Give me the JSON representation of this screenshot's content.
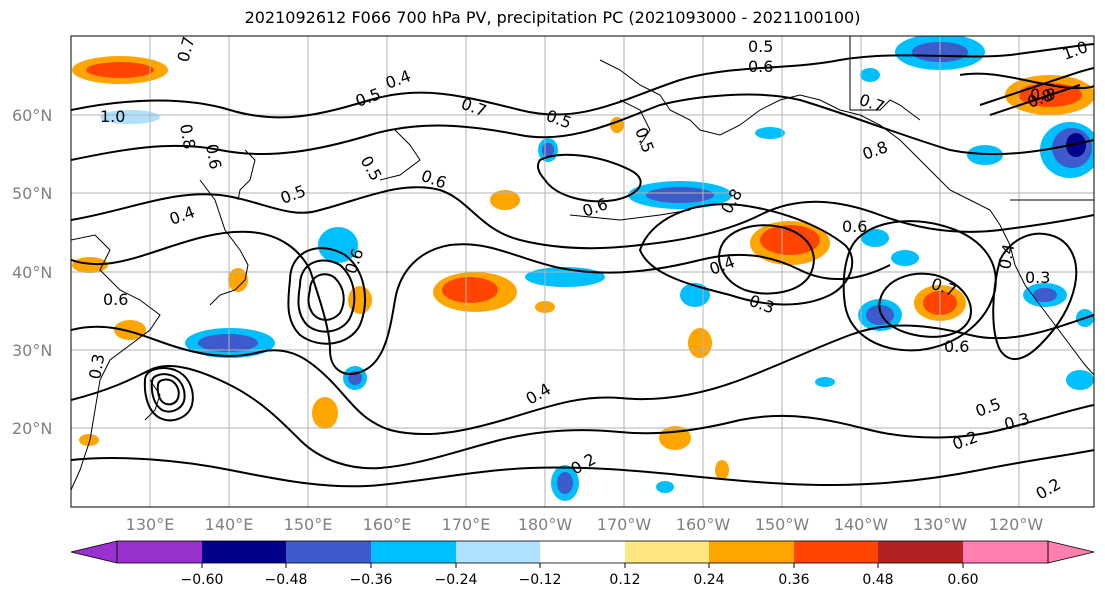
{
  "title": "2021092612 F066 700 hPa PV, precipitation PC (2021093000 - 2021100100)",
  "lat_labels": [
    "60°N",
    "50°N",
    "40°N",
    "30°N",
    "20°N"
  ],
  "lon_labels": [
    "130°E",
    "140°E",
    "150°E",
    "160°E",
    "170°E",
    "180°W",
    "170°W",
    "160°W",
    "150°W",
    "140°W",
    "130°W",
    "120°W"
  ],
  "colorbar": {
    "colors": [
      "#9932cc",
      "#00008b",
      "#3e5bcc",
      "#00bfff",
      "#b0e0ff",
      "#ffffff",
      "#ffe680",
      "#ffa500",
      "#ff4500",
      "#b22222",
      "#ff80b0"
    ],
    "tick_labels": [
      "−0.60",
      "−0.48",
      "−0.36",
      "−0.24",
      "−0.12",
      "0.12",
      "0.24",
      "0.36",
      "0.48",
      "0.60"
    ]
  },
  "contour_labels": [
    "0.7",
    "1.0",
    "0.6",
    "0.8",
    "0.5",
    "0.4",
    "0.5",
    "0.7",
    "0.5",
    "0.5",
    "0.6",
    "0.5",
    "0.4",
    "0.6",
    "0.8",
    "0.7",
    "0.8",
    "0.8",
    "0.6",
    "0.6",
    "0.4",
    "0.3",
    "0.7",
    "0.6",
    "0.4",
    "0.3",
    "0.5",
    "0.3",
    "0.2",
    "0.2",
    "0.4",
    "0.3",
    "0.6",
    "0.2",
    "1.0",
    "0.8",
    "0.5",
    "0.6"
  ]
}
